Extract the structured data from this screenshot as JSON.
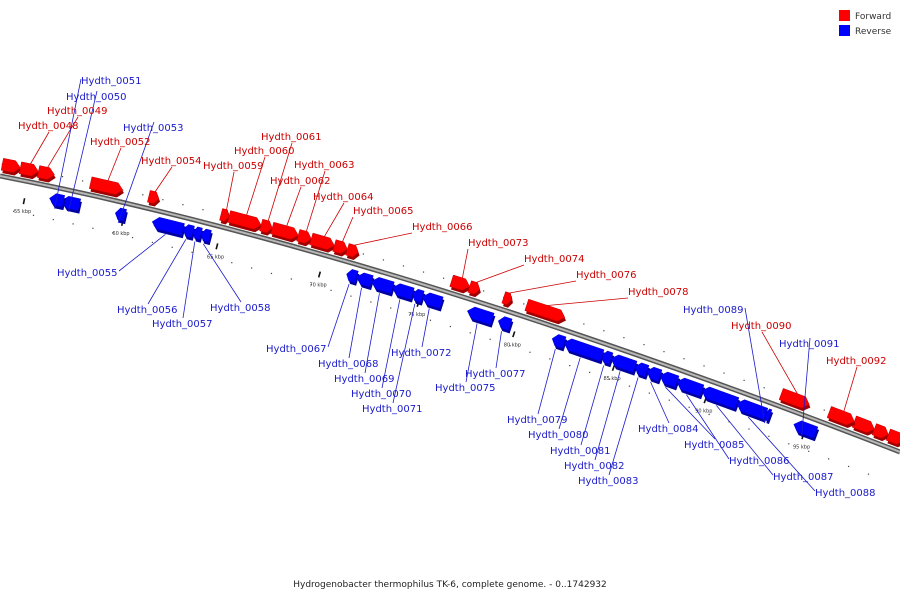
{
  "colors": {
    "forward": "#ff0000",
    "reverse": "#0000ff",
    "forward_dark": "#a00000",
    "reverse_dark": "#0000a0",
    "forward_label": "#cc0000",
    "reverse_label": "#1a1acc",
    "backbone": "#888888",
    "tick": "#111111"
  },
  "legend": {
    "forward_label": "Forward",
    "reverse_label": "Reverse"
  },
  "caption": "Hydrogenobacter thermophilus TK-6, complete genome. - 0..1742932",
  "ticks": [
    {
      "label": "55 kbp"
    },
    {
      "label": "60 kbp"
    },
    {
      "label": "65 kbp"
    },
    {
      "label": "70 kbp"
    },
    {
      "label": "75 kbp"
    },
    {
      "label": "80 kbp"
    },
    {
      "label": "85 kbp"
    },
    {
      "label": "90 kbp"
    },
    {
      "label": "95 kbp"
    }
  ],
  "genes": [
    {
      "name": "Hydth_0048",
      "strand": "forward"
    },
    {
      "name": "Hydth_0049",
      "strand": "forward"
    },
    {
      "name": "Hydth_0050",
      "strand": "reverse"
    },
    {
      "name": "Hydth_0051",
      "strand": "reverse"
    },
    {
      "name": "Hydth_0052",
      "strand": "forward"
    },
    {
      "name": "Hydth_0053",
      "strand": "reverse"
    },
    {
      "name": "Hydth_0054",
      "strand": "forward"
    },
    {
      "name": "Hydth_0055",
      "strand": "reverse"
    },
    {
      "name": "Hydth_0056",
      "strand": "reverse"
    },
    {
      "name": "Hydth_0057",
      "strand": "reverse"
    },
    {
      "name": "Hydth_0058",
      "strand": "reverse"
    },
    {
      "name": "Hydth_0059",
      "strand": "forward"
    },
    {
      "name": "Hydth_0060",
      "strand": "forward"
    },
    {
      "name": "Hydth_0061",
      "strand": "forward"
    },
    {
      "name": "Hydth_0062",
      "strand": "forward"
    },
    {
      "name": "Hydth_0063",
      "strand": "forward"
    },
    {
      "name": "Hydth_0064",
      "strand": "forward"
    },
    {
      "name": "Hydth_0065",
      "strand": "forward"
    },
    {
      "name": "Hydth_0066",
      "strand": "forward"
    },
    {
      "name": "Hydth_0067",
      "strand": "reverse"
    },
    {
      "name": "Hydth_0068",
      "strand": "reverse"
    },
    {
      "name": "Hydth_0069",
      "strand": "reverse"
    },
    {
      "name": "Hydth_0070",
      "strand": "reverse"
    },
    {
      "name": "Hydth_0071",
      "strand": "reverse"
    },
    {
      "name": "Hydth_0072",
      "strand": "reverse"
    },
    {
      "name": "Hydth_0073",
      "strand": "forward"
    },
    {
      "name": "Hydth_0074",
      "strand": "forward"
    },
    {
      "name": "Hydth_0075",
      "strand": "reverse"
    },
    {
      "name": "Hydth_0076",
      "strand": "forward"
    },
    {
      "name": "Hydth_0077",
      "strand": "reverse"
    },
    {
      "name": "Hydth_0078",
      "strand": "forward"
    },
    {
      "name": "Hydth_0079",
      "strand": "reverse"
    },
    {
      "name": "Hydth_0080",
      "strand": "reverse"
    },
    {
      "name": "Hydth_0081",
      "strand": "reverse"
    },
    {
      "name": "Hydth_0082",
      "strand": "reverse"
    },
    {
      "name": "Hydth_0083",
      "strand": "reverse"
    },
    {
      "name": "Hydth_0084",
      "strand": "reverse"
    },
    {
      "name": "Hydth_0085",
      "strand": "reverse"
    },
    {
      "name": "Hydth_0086",
      "strand": "reverse"
    },
    {
      "name": "Hydth_0087",
      "strand": "reverse"
    },
    {
      "name": "Hydth_0088",
      "strand": "reverse"
    },
    {
      "name": "Hydth_0089",
      "strand": "reverse"
    },
    {
      "name": "Hydth_0090",
      "strand": "forward"
    },
    {
      "name": "Hydth_0091",
      "strand": "reverse"
    },
    {
      "name": "Hydth_0092",
      "strand": "forward"
    }
  ]
}
